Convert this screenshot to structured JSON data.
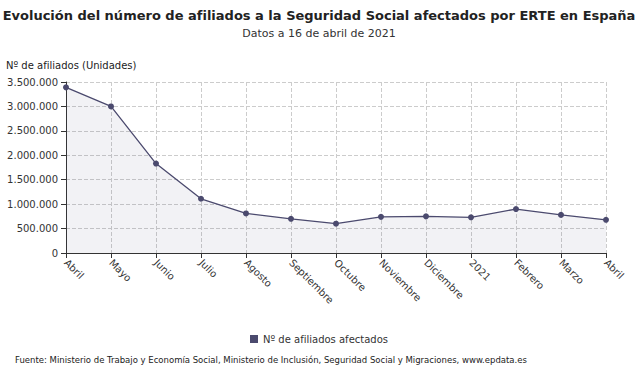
{
  "chart_data": {
    "type": "line",
    "title": "Evolución del número de afiliados a la Seguridad Social afectados por ERTE en España",
    "subtitle": "Datos a 16 de abril de 2021",
    "y_label": "Nº de afiliados (Unidades)",
    "source": "Fuente: Ministerio de Trabajo y Economía Social, Ministerio de Inclusión, Seguridad Social y Migraciones, www.epdata.es",
    "categories": [
      "Abril",
      "Mayo",
      "Junio",
      "Julio",
      "Agosto",
      "Septiembre",
      "Octubre",
      "Noviembre",
      "Diciembre",
      "2021",
      "Febrero",
      "Marzo",
      "Abril"
    ],
    "series": [
      {
        "name": "Nº de afiliados afectados",
        "color": "#4b4a6e",
        "marker": "circle",
        "values": [
          3390000,
          3000000,
          1830000,
          1110000,
          810000,
          700000,
          600000,
          740000,
          750000,
          730000,
          900000,
          780000,
          680000
        ]
      }
    ],
    "ylim": [
      0,
      3500000
    ],
    "yticks": [
      {
        "value": 0,
        "label": "0"
      },
      {
        "value": 500000,
        "label": "500.000"
      },
      {
        "value": 1000000,
        "label": "1.000.000"
      },
      {
        "value": 1500000,
        "label": "1.500.000"
      },
      {
        "value": 2000000,
        "label": "2.000.000"
      },
      {
        "value": 2500000,
        "label": "2.500.000"
      },
      {
        "value": 3000000,
        "label": "3.000.000"
      },
      {
        "value": 3500000,
        "label": "3.500.000"
      }
    ],
    "grid": true,
    "legend": "bottom"
  }
}
